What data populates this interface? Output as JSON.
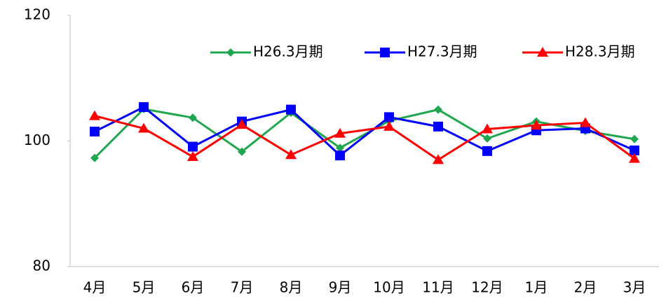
{
  "chart_data": {
    "type": "line",
    "categories": [
      "4月",
      "5月",
      "6月",
      "7月",
      "8月",
      "9月",
      "10月",
      "11月",
      "12月",
      "1月",
      "2月",
      "3月"
    ],
    "series": [
      {
        "name": "H26.3月期",
        "color": "#1fa64f",
        "marker": "diamond",
        "values": [
          97.3,
          105.1,
          103.7,
          98.3,
          104.5,
          98.9,
          103.2,
          105.0,
          100.4,
          103.1,
          101.6,
          100.3
        ]
      },
      {
        "name": "H27.3月期",
        "color": "#0000ff",
        "marker": "square",
        "values": [
          101.5,
          105.4,
          99.1,
          103.1,
          105.0,
          97.7,
          103.8,
          102.3,
          98.4,
          101.7,
          102.0,
          98.5
        ]
      },
      {
        "name": "H28.3月期",
        "color": "#ff0000",
        "marker": "triangle",
        "values": [
          104.0,
          102.0,
          97.5,
          102.6,
          97.8,
          101.2,
          102.3,
          97.0,
          101.9,
          102.5,
          102.9,
          97.2
        ]
      }
    ],
    "ylim": [
      80,
      120
    ],
    "yticks": [
      80,
      100,
      120
    ],
    "grid": false,
    "legend": "upper right"
  }
}
